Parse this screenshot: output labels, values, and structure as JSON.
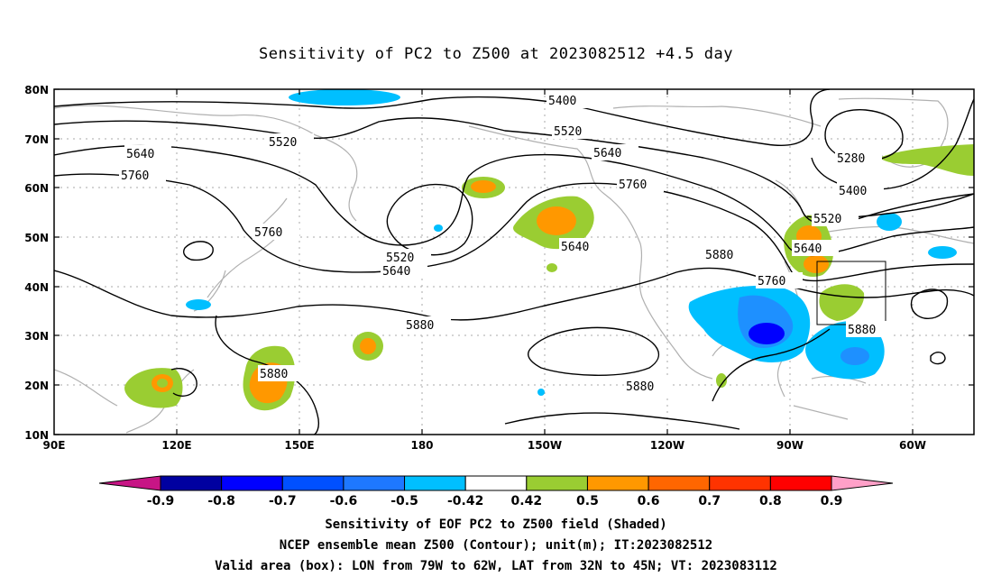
{
  "title": "Sensitivity of PC2 to Z500 at 2023082512 +4.5 day",
  "map": {
    "lon_ticks": [
      "90E",
      "120E",
      "150E",
      "180",
      "150W",
      "120W",
      "90W",
      "60W"
    ],
    "lat_ticks": [
      "80N",
      "70N",
      "60N",
      "50N",
      "40N",
      "30N",
      "20N",
      "10N"
    ],
    "contour_labels": [
      "5400",
      "5520",
      "5520",
      "5640",
      "5640",
      "5760",
      "5760",
      "5760",
      "5640",
      "5520",
      "5520",
      "5640",
      "5880",
      "5280",
      "5400",
      "5520",
      "5640",
      "5760",
      "5880",
      "5880",
      "5880",
      "5880"
    ],
    "colors": {
      "coast": "#b0b0b0",
      "contour": "#000000",
      "pos_0_42": "#9acd32",
      "pos_0_5": "#ff9800",
      "pos_0_6": "#ff6600",
      "neg_0_42": "#00bfff",
      "neg_0_5": "#1e90ff",
      "neg_0_6": "#0000ff"
    }
  },
  "colorbar": {
    "labels": [
      "-0.9",
      "-0.8",
      "-0.7",
      "-0.6",
      "-0.5",
      "-0.42",
      "0.42",
      "0.5",
      "0.6",
      "0.7",
      "0.8",
      "0.9"
    ],
    "colors": [
      "#c71585",
      "#0000a0",
      "#0000ff",
      "#0050ff",
      "#1e78ff",
      "#00bfff",
      "#ffffff",
      "#9acd32",
      "#ff9800",
      "#ff6600",
      "#ff3300",
      "#ff0000",
      "#ffa0c8"
    ]
  },
  "captions": {
    "line1": "Sensitivity of EOF PC2 to Z500 field (Shaded)",
    "line2": "NCEP ensemble mean Z500 (Contour); unit(m); IT:2023082512",
    "line3": "Valid area (box): LON from 79W to 62W, LAT from 32N to 45N; VT: 2023083112"
  }
}
